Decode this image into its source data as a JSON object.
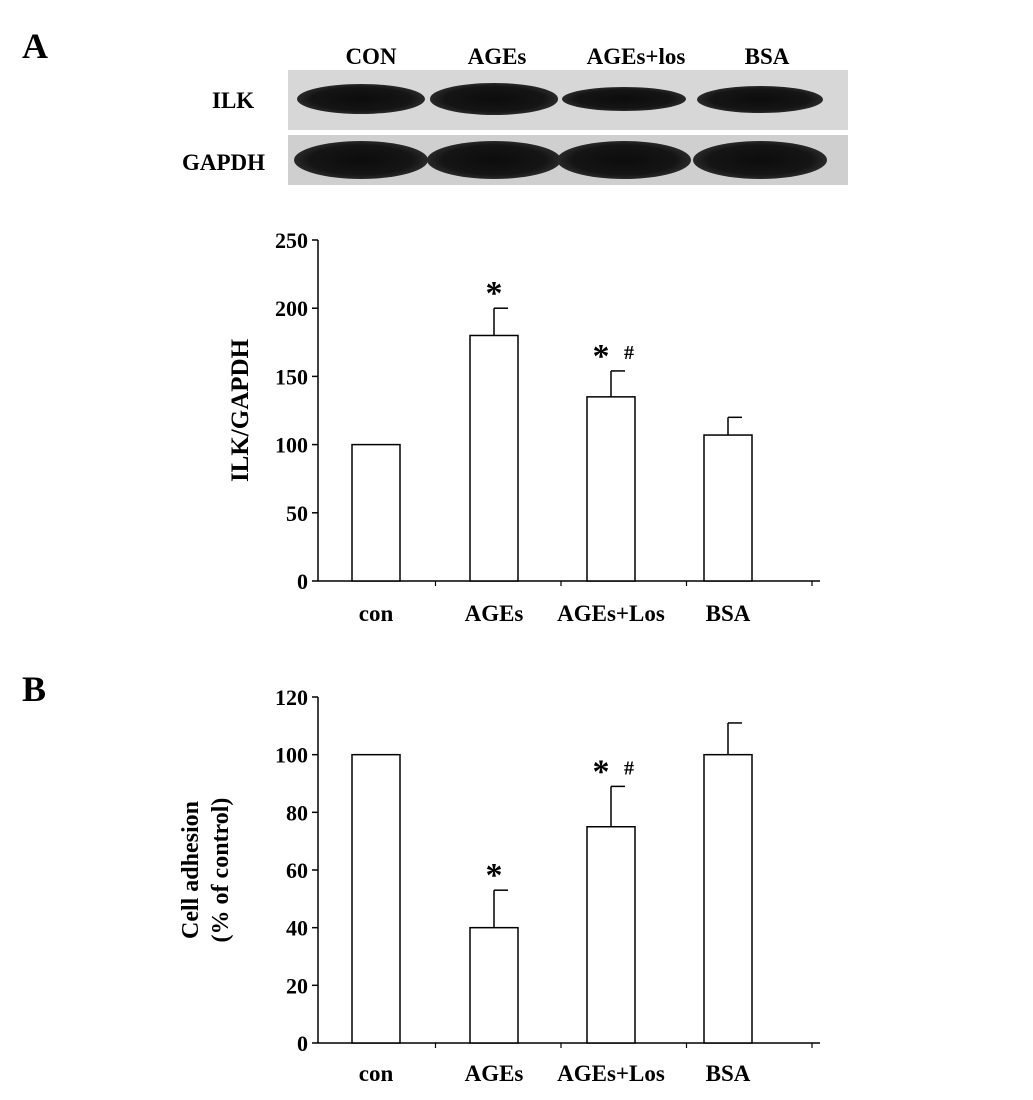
{
  "panels": {
    "a_letter": "A",
    "b_letter": "B"
  },
  "blot": {
    "lanes": [
      "CON",
      "AGEs",
      "AGEs+los",
      "BSA"
    ],
    "rows": [
      "ILK",
      "GAPDH"
    ],
    "band_intensity": {
      "ILK": [
        1.0,
        1.05,
        0.8,
        0.9
      ],
      "GAPDH": [
        1.0,
        1.0,
        1.0,
        1.0
      ]
    }
  },
  "chart_data": [
    {
      "type": "bar",
      "categories": [
        "con",
        "AGEs",
        "AGEs+Los",
        "BSA"
      ],
      "values": [
        100,
        180,
        135,
        107
      ],
      "errors": [
        0,
        20,
        19,
        13
      ],
      "significance": [
        "",
        "*",
        "* #",
        ""
      ],
      "ylabel": "ILK/GAPDH",
      "xlabel": "",
      "ylim": [
        0,
        250
      ],
      "yticks": [
        0,
        50,
        100,
        150,
        200,
        250
      ],
      "grid": false
    },
    {
      "type": "bar",
      "categories": [
        "con",
        "AGEs",
        "AGEs+Los",
        "BSA"
      ],
      "values": [
        100,
        40,
        75,
        100
      ],
      "errors": [
        0,
        13,
        14,
        11
      ],
      "significance": [
        "",
        "*",
        "* #",
        ""
      ],
      "ylabel": "Cell adhesion (% of control)",
      "ylabel_lines": [
        "Cell adhesion",
        "(% of control)"
      ],
      "xlabel": "",
      "ylim": [
        0,
        120
      ],
      "yticks": [
        0,
        20,
        40,
        60,
        80,
        100,
        120
      ],
      "grid": false
    }
  ]
}
